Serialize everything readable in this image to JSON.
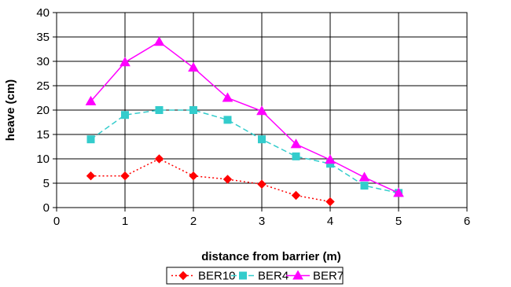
{
  "chart_data": {
    "type": "line",
    "xlabel": "distance from barrier (m)",
    "ylabel": "heave (cm)",
    "xlim": [
      0,
      6
    ],
    "ylim": [
      0,
      40
    ],
    "x_ticks": [
      0,
      1,
      2,
      3,
      4,
      5,
      6
    ],
    "y_ticks": [
      0,
      5,
      10,
      15,
      20,
      25,
      30,
      35,
      40
    ],
    "grid": "vertical and horizontal major gridlines",
    "legend_position": "bottom",
    "series": [
      {
        "name": "BER10",
        "color": "#ff0000",
        "line_style": "dotted",
        "marker": "diamond",
        "x": [
          0.5,
          1,
          1.5,
          2,
          2.5,
          3,
          3.5,
          4
        ],
        "y": [
          6.5,
          6.5,
          10,
          6.5,
          5.8,
          4.8,
          2.5,
          1.2
        ]
      },
      {
        "name": "BER4",
        "color": "#33cccc",
        "line_style": "dashed",
        "marker": "square",
        "x": [
          0.5,
          1,
          1.5,
          2,
          2.5,
          3,
          3.5,
          4,
          4.5,
          5
        ],
        "y": [
          14,
          19,
          20,
          20,
          18,
          14,
          10.5,
          9,
          4.5,
          3
        ]
      },
      {
        "name": "BER7",
        "color": "#ff00ff",
        "line_style": "solid",
        "marker": "triangle",
        "x": [
          0.5,
          1,
          1.5,
          2,
          2.5,
          3,
          3.5,
          4,
          4.5,
          5
        ],
        "y": [
          21.8,
          29.8,
          34,
          28.7,
          22.5,
          19.8,
          13,
          9.8,
          6.2,
          3
        ]
      }
    ]
  }
}
